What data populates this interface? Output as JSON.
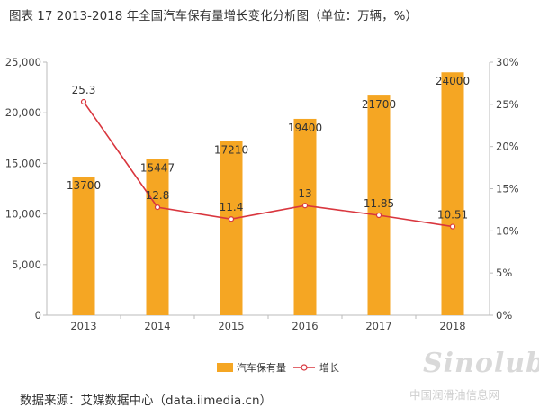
{
  "title": "图表 17    2013-2018 年全国汽车保有量增长变化分析图（单位：万辆，%）",
  "source": "数据来源：艾媒数据中心（data.iimedia.cn）",
  "watermark": {
    "main": "Sinolub",
    "sub": "中国润滑油信息网"
  },
  "colors": {
    "bar": "#f5a623",
    "line": "#d9363e",
    "axis": "#bbbbbb",
    "grid": "#e6e6e6"
  },
  "chart_data": {
    "type": "bar",
    "categories": [
      "2013",
      "2014",
      "2015",
      "2016",
      "2017",
      "2018"
    ],
    "series": [
      {
        "name": "汽车保有量",
        "type": "bar",
        "axis": "left",
        "values": [
          13700,
          15447,
          17210,
          19400,
          21700,
          24000
        ],
        "labels": [
          "13700",
          "15447",
          "17210",
          "19400",
          "21700",
          "24000"
        ]
      },
      {
        "name": "增长",
        "type": "line",
        "axis": "right",
        "values": [
          25.3,
          12.8,
          11.4,
          13,
          11.85,
          10.51
        ],
        "labels": [
          "25.3",
          "12.8",
          "11.4",
          "13",
          "11.85",
          "10.51"
        ]
      }
    ],
    "yleft": {
      "min": 0,
      "max": 25000,
      "ticks": [
        0,
        5000,
        10000,
        15000,
        20000,
        25000
      ],
      "tick_labels": [
        "0",
        "5,000",
        "10,000",
        "15,000",
        "20,000",
        "25,000"
      ]
    },
    "yright": {
      "min": 0,
      "max": 30,
      "ticks": [
        0,
        5,
        10,
        15,
        20,
        25,
        30
      ],
      "tick_labels": [
        "0%",
        "5%",
        "10%",
        "15%",
        "20%",
        "25%",
        "30%"
      ]
    },
    "grid": false,
    "legend": {
      "position": "bottom-center",
      "items": [
        "汽车保有量",
        "增长"
      ]
    }
  }
}
